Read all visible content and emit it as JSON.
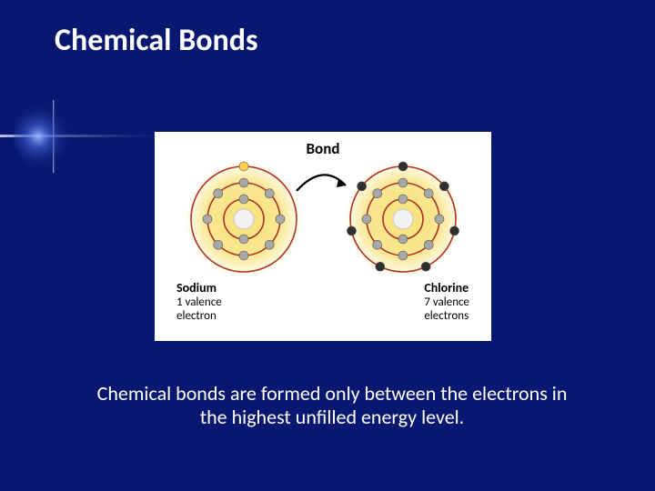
{
  "slide": {
    "background_color": "#081870",
    "title": "Chemical Bonds",
    "title_fontsize": 34,
    "title_color": "#ffffff",
    "caption": "Chemical bonds are formed only between the electrons in the highest unfilled energy level.",
    "caption_fontsize": 22,
    "caption_color": "#ffffff"
  },
  "diagram": {
    "background_color": "#ffffff",
    "bond_label": "Bond",
    "bond_label_fontsize": 17,
    "arrow": {
      "stroke": "#000000",
      "stroke_width": 2.2
    },
    "glow_color": "#f8e070",
    "shell_color": "#b03028",
    "nucleus_fill": "#f2f2f2",
    "nucleus_stroke": "#c8c8c8",
    "electron_inner_color": "#a8a8a8",
    "electron_outer_sodium": "#ffd24a",
    "electron_outer_chlorine": "#303030",
    "atoms": [
      {
        "key": "sodium",
        "name": "Sodium",
        "valence_text_l1": "1 valence",
        "valence_text_l2": "electron",
        "shells": [
          {
            "r": 22,
            "electrons": 2,
            "electron_color": "#a8a8a8"
          },
          {
            "r": 40,
            "electrons": 8,
            "electron_color": "#a8a8a8"
          },
          {
            "r": 58,
            "electrons": 1,
            "electron_color": "#ffd24a",
            "top_only": true
          }
        ]
      },
      {
        "key": "chlorine",
        "name": "Chlorine",
        "valence_text_l1": "7 valence",
        "valence_text_l2": "electrons",
        "shells": [
          {
            "r": 22,
            "electrons": 2,
            "electron_color": "#a8a8a8"
          },
          {
            "r": 40,
            "electrons": 8,
            "electron_color": "#a8a8a8"
          },
          {
            "r": 58,
            "electrons": 7,
            "electron_color": "#303030"
          }
        ]
      }
    ],
    "label_name_fontsize": 14,
    "label_val_fontsize": 13
  }
}
